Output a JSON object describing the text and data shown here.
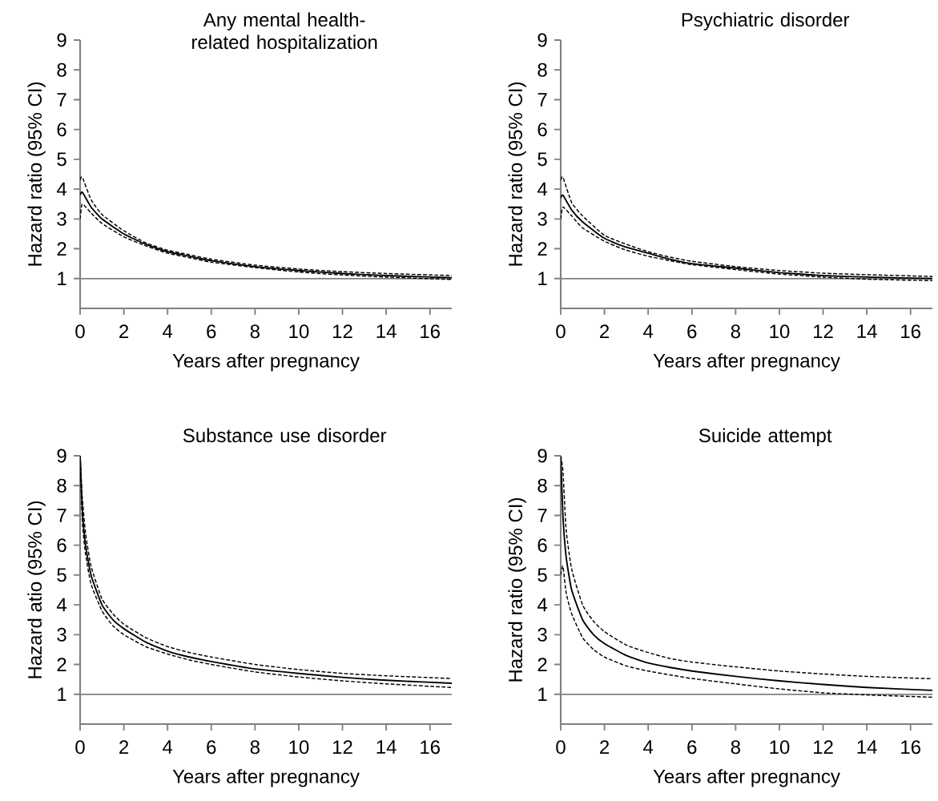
{
  "chart_data": [
    {
      "type": "line",
      "title": "Any mental health-related hospitalization",
      "xlabel": "Years after pregnancy",
      "ylabel": "Hazard ratio (95% CI)",
      "x": [
        0,
        0.1,
        0.5,
        1,
        2,
        3,
        4,
        5,
        6,
        8,
        10,
        12,
        14,
        17
      ],
      "series": [
        {
          "color": "#000000",
          "line_style": "solid",
          "values": [
            3.8,
            3.9,
            3.4,
            3.0,
            2.5,
            2.15,
            1.9,
            1.75,
            1.6,
            1.4,
            1.27,
            1.17,
            1.1,
            1.03
          ]
        },
        {
          "color": "#000000",
          "line_style": "dashed",
          "values": [
            4.3,
            4.4,
            3.65,
            3.15,
            2.6,
            2.2,
            1.95,
            1.8,
            1.65,
            1.45,
            1.32,
            1.23,
            1.17,
            1.1
          ]
        },
        {
          "color": "#000000",
          "line_style": "dashed",
          "values": [
            3.0,
            3.5,
            3.2,
            2.85,
            2.4,
            2.1,
            1.85,
            1.7,
            1.55,
            1.37,
            1.22,
            1.12,
            1.05,
            0.97
          ]
        }
      ],
      "ref_lines": [
        {
          "axis": "y",
          "value": 1,
          "color": "#808080"
        }
      ],
      "xlim": [
        0,
        17
      ],
      "ylim": [
        0,
        9
      ],
      "xticks": [
        0,
        2,
        4,
        6,
        8,
        10,
        12,
        14,
        16
      ],
      "yticks": [
        1,
        2,
        3,
        4,
        5,
        6,
        7,
        8,
        9
      ]
    },
    {
      "type": "line",
      "title": "Psychiatric disorder",
      "xlabel": "Years after pregnancy",
      "ylabel": "Hazard ratio (95% CI)",
      "x": [
        0,
        0.1,
        0.5,
        1,
        2,
        3,
        4,
        5,
        6,
        8,
        10,
        12,
        14,
        17
      ],
      "series": [
        {
          "color": "#000000",
          "line_style": "solid",
          "values": [
            3.7,
            3.8,
            3.3,
            2.9,
            2.35,
            2.05,
            1.85,
            1.65,
            1.5,
            1.35,
            1.2,
            1.1,
            1.05,
            1.0
          ]
        },
        {
          "color": "#000000",
          "line_style": "dashed",
          "values": [
            4.3,
            4.4,
            3.55,
            3.1,
            2.45,
            2.15,
            1.9,
            1.72,
            1.58,
            1.4,
            1.27,
            1.18,
            1.13,
            1.07
          ]
        },
        {
          "color": "#000000",
          "line_style": "dashed",
          "values": [
            3.0,
            3.4,
            3.1,
            2.7,
            2.25,
            1.95,
            1.75,
            1.6,
            1.47,
            1.3,
            1.15,
            1.05,
            0.98,
            0.93
          ]
        }
      ],
      "ref_lines": [
        {
          "axis": "y",
          "value": 1,
          "color": "#808080"
        }
      ],
      "xlim": [
        0,
        17
      ],
      "ylim": [
        0,
        9
      ],
      "xticks": [
        0,
        2,
        4,
        6,
        8,
        10,
        12,
        14,
        16
      ],
      "yticks": [
        1,
        2,
        3,
        4,
        5,
        6,
        7,
        8,
        9
      ]
    },
    {
      "type": "line",
      "title": "Substance use disorder",
      "xlabel": "Years after pregnancy",
      "ylabel": "Hazard atio (95% CI)",
      "x": [
        0,
        0.1,
        0.25,
        0.5,
        1,
        1.5,
        2,
        3,
        4,
        5,
        6,
        8,
        10,
        12,
        14,
        17
      ],
      "series": [
        {
          "color": "#000000",
          "line_style": "solid",
          "values": [
            9,
            7.2,
            6,
            5,
            4,
            3.5,
            3.2,
            2.75,
            2.45,
            2.25,
            2.1,
            1.85,
            1.7,
            1.57,
            1.47,
            1.37
          ]
        },
        {
          "color": "#000000",
          "line_style": "dashed",
          "values": [
            9,
            7.6,
            6.4,
            5.3,
            4.2,
            3.7,
            3.35,
            2.9,
            2.6,
            2.4,
            2.25,
            2.0,
            1.83,
            1.7,
            1.62,
            1.53
          ]
        },
        {
          "color": "#000000",
          "line_style": "dashed",
          "values": [
            9,
            6.8,
            5.7,
            4.7,
            3.8,
            3.3,
            3.0,
            2.6,
            2.35,
            2.15,
            2.0,
            1.75,
            1.58,
            1.45,
            1.35,
            1.23
          ]
        }
      ],
      "ref_lines": [
        {
          "axis": "y",
          "value": 1,
          "color": "#808080"
        }
      ],
      "xlim": [
        0,
        17
      ],
      "ylim": [
        0,
        9
      ],
      "xticks": [
        0,
        2,
        4,
        6,
        8,
        10,
        12,
        14,
        16
      ],
      "yticks": [
        1,
        2,
        3,
        4,
        5,
        6,
        7,
        8,
        9
      ]
    },
    {
      "type": "line",
      "title": "Suicide attempt",
      "xlabel": "Years after pregnancy",
      "ylabel": "Hazard ratio (95% CI)",
      "x": [
        0,
        0.1,
        0.25,
        0.5,
        1,
        1.5,
        2,
        3,
        4,
        5,
        6,
        8,
        10,
        12,
        14,
        17
      ],
      "series": [
        {
          "color": "#000000",
          "line_style": "solid",
          "values": [
            9,
            7,
            5.6,
            4.5,
            3.5,
            3.0,
            2.7,
            2.3,
            2.05,
            1.9,
            1.78,
            1.6,
            1.45,
            1.33,
            1.23,
            1.13
          ]
        },
        {
          "color": "#000000",
          "line_style": "dashed",
          "values": [
            9,
            8.5,
            6.5,
            5.2,
            4.0,
            3.45,
            3.1,
            2.65,
            2.4,
            2.2,
            2.08,
            1.92,
            1.78,
            1.68,
            1.6,
            1.52
          ]
        },
        {
          "color": "#000000",
          "line_style": "dashed",
          "values": [
            5,
            5.3,
            4.4,
            3.7,
            2.9,
            2.5,
            2.25,
            1.95,
            1.78,
            1.65,
            1.53,
            1.35,
            1.18,
            1.05,
            0.98,
            0.9
          ]
        }
      ],
      "ref_lines": [
        {
          "axis": "y",
          "value": 1,
          "color": "#808080"
        }
      ],
      "xlim": [
        0,
        17
      ],
      "ylim": [
        0,
        9
      ],
      "xticks": [
        0,
        2,
        4,
        6,
        8,
        10,
        12,
        14,
        16
      ],
      "yticks": [
        1,
        2,
        3,
        4,
        5,
        6,
        7,
        8,
        9
      ]
    }
  ]
}
